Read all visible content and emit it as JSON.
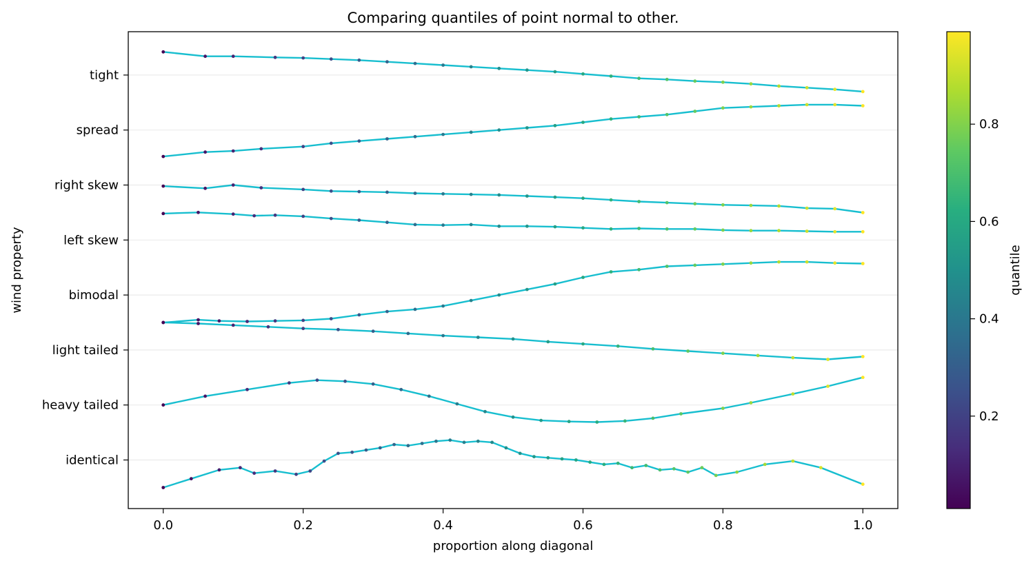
{
  "chart_data": {
    "type": "line",
    "title": "Comparing quantiles of point normal to other.",
    "xlabel": "proportion along diagonal",
    "ylabel": "wind property",
    "xlim": [
      -0.05,
      1.05
    ],
    "xticks": [
      "0.0",
      "0.2",
      "0.4",
      "0.6",
      "0.8",
      "1.0"
    ],
    "ytick_labels": [
      "identical",
      "heavy tailed",
      "light tailed",
      "bimodal",
      "left skew",
      "right skew",
      "spread",
      "tight"
    ],
    "grid": "horizontal",
    "line_color": "#17becf",
    "colorbar": {
      "label": "quantile",
      "ticks": [
        "0.2",
        "0.4",
        "0.6",
        "0.8"
      ],
      "range": [
        0.01,
        0.99
      ],
      "colormap": "viridis"
    },
    "series": [
      {
        "row": 7,
        "x": [
          0,
          0.06,
          0.1,
          0.16,
          0.2,
          0.24,
          0.28,
          0.32,
          0.36,
          0.4,
          0.44,
          0.48,
          0.52,
          0.56,
          0.6,
          0.64,
          0.68,
          0.72,
          0.76,
          0.8,
          0.84,
          0.88,
          0.92,
          0.96,
          1.0
        ],
        "y": [
          0.42,
          0.34,
          0.34,
          0.32,
          0.31,
          0.29,
          0.27,
          0.24,
          0.21,
          0.18,
          0.15,
          0.12,
          0.09,
          0.06,
          0.02,
          -0.02,
          -0.06,
          -0.08,
          -0.11,
          -0.13,
          -0.16,
          -0.2,
          -0.23,
          -0.26,
          -0.3
        ]
      },
      {
        "row": 6,
        "x": [
          0,
          0.06,
          0.1,
          0.14,
          0.2,
          0.24,
          0.28,
          0.32,
          0.36,
          0.4,
          0.44,
          0.48,
          0.52,
          0.56,
          0.6,
          0.64,
          0.68,
          0.72,
          0.76,
          0.8,
          0.84,
          0.88,
          0.92,
          0.96,
          1.0
        ],
        "y": [
          -0.48,
          -0.4,
          -0.38,
          -0.34,
          -0.3,
          -0.24,
          -0.2,
          -0.16,
          -0.12,
          -0.08,
          -0.04,
          0.0,
          0.04,
          0.08,
          0.14,
          0.2,
          0.24,
          0.28,
          0.34,
          0.4,
          0.42,
          0.44,
          0.46,
          0.46,
          0.44
        ]
      },
      {
        "row": 5,
        "x": [
          0,
          0.06,
          0.1,
          0.14,
          0.2,
          0.24,
          0.28,
          0.32,
          0.36,
          0.4,
          0.44,
          0.48,
          0.52,
          0.56,
          0.6,
          0.64,
          0.68,
          0.72,
          0.76,
          0.8,
          0.84,
          0.88,
          0.92,
          0.96,
          1.0
        ],
        "y": [
          -0.02,
          -0.06,
          0.0,
          -0.05,
          -0.08,
          -0.11,
          -0.12,
          -0.13,
          -0.15,
          -0.16,
          -0.17,
          -0.18,
          -0.2,
          -0.22,
          -0.24,
          -0.27,
          -0.3,
          -0.32,
          -0.34,
          -0.36,
          -0.37,
          -0.38,
          -0.42,
          -0.43,
          -0.5
        ]
      },
      {
        "row": 4,
        "x": [
          0,
          0.05,
          0.1,
          0.13,
          0.16,
          0.2,
          0.24,
          0.28,
          0.32,
          0.36,
          0.4,
          0.44,
          0.48,
          0.52,
          0.56,
          0.6,
          0.64,
          0.68,
          0.72,
          0.76,
          0.8,
          0.84,
          0.88,
          0.92,
          0.96,
          1.0
        ],
        "y": [
          0.48,
          0.5,
          0.47,
          0.44,
          0.45,
          0.43,
          0.39,
          0.36,
          0.32,
          0.28,
          0.27,
          0.28,
          0.25,
          0.25,
          0.24,
          0.22,
          0.2,
          0.21,
          0.2,
          0.2,
          0.18,
          0.17,
          0.17,
          0.16,
          0.15,
          0.15
        ]
      },
      {
        "row": 3,
        "x": [
          0,
          0.05,
          0.08,
          0.12,
          0.16,
          0.2,
          0.24,
          0.28,
          0.32,
          0.36,
          0.4,
          0.44,
          0.48,
          0.52,
          0.56,
          0.6,
          0.64,
          0.68,
          0.72,
          0.76,
          0.8,
          0.84,
          0.88,
          0.92,
          0.96,
          1.0
        ],
        "y": [
          -0.5,
          -0.45,
          -0.47,
          -0.48,
          -0.47,
          -0.46,
          -0.43,
          -0.36,
          -0.3,
          -0.26,
          -0.2,
          -0.1,
          0.0,
          0.1,
          0.2,
          0.32,
          0.42,
          0.46,
          0.52,
          0.54,
          0.56,
          0.58,
          0.6,
          0.6,
          0.58,
          0.57
        ]
      },
      {
        "row": 2,
        "x": [
          0,
          0.05,
          0.1,
          0.15,
          0.2,
          0.25,
          0.3,
          0.35,
          0.4,
          0.45,
          0.5,
          0.55,
          0.6,
          0.65,
          0.7,
          0.75,
          0.8,
          0.85,
          0.9,
          0.95,
          1.0
        ],
        "y": [
          0.5,
          0.48,
          0.45,
          0.42,
          0.39,
          0.37,
          0.34,
          0.3,
          0.26,
          0.23,
          0.2,
          0.15,
          0.11,
          0.07,
          0.02,
          -0.02,
          -0.06,
          -0.1,
          -0.14,
          -0.17,
          -0.12
        ]
      },
      {
        "row": 1,
        "x": [
          0,
          0.06,
          0.12,
          0.18,
          0.22,
          0.26,
          0.3,
          0.34,
          0.38,
          0.42,
          0.46,
          0.5,
          0.54,
          0.58,
          0.62,
          0.66,
          0.7,
          0.74,
          0.8,
          0.84,
          0.9,
          0.95,
          1.0
        ],
        "y": [
          0.0,
          0.16,
          0.28,
          0.4,
          0.45,
          0.43,
          0.38,
          0.28,
          0.16,
          0.02,
          -0.12,
          -0.22,
          -0.28,
          -0.3,
          -0.31,
          -0.29,
          -0.24,
          -0.16,
          -0.06,
          0.04,
          0.2,
          0.34,
          0.5
        ]
      },
      {
        "row": 0,
        "x": [
          0,
          0.04,
          0.08,
          0.11,
          0.13,
          0.16,
          0.19,
          0.21,
          0.23,
          0.25,
          0.27,
          0.29,
          0.31,
          0.33,
          0.35,
          0.37,
          0.39,
          0.41,
          0.43,
          0.45,
          0.47,
          0.49,
          0.51,
          0.53,
          0.55,
          0.57,
          0.59,
          0.61,
          0.63,
          0.65,
          0.67,
          0.69,
          0.71,
          0.73,
          0.75,
          0.77,
          0.79,
          0.82,
          0.86,
          0.9,
          0.94,
          1.0
        ],
        "y": [
          -0.5,
          -0.34,
          -0.18,
          -0.14,
          -0.24,
          -0.2,
          -0.26,
          -0.2,
          -0.02,
          0.12,
          0.14,
          0.18,
          0.22,
          0.28,
          0.26,
          0.3,
          0.34,
          0.36,
          0.32,
          0.34,
          0.32,
          0.22,
          0.12,
          0.06,
          0.04,
          0.02,
          0.0,
          -0.04,
          -0.08,
          -0.06,
          -0.14,
          -0.1,
          -0.18,
          -0.16,
          -0.22,
          -0.14,
          -0.28,
          -0.22,
          -0.08,
          -0.02,
          -0.14,
          -0.44
        ]
      }
    ]
  }
}
